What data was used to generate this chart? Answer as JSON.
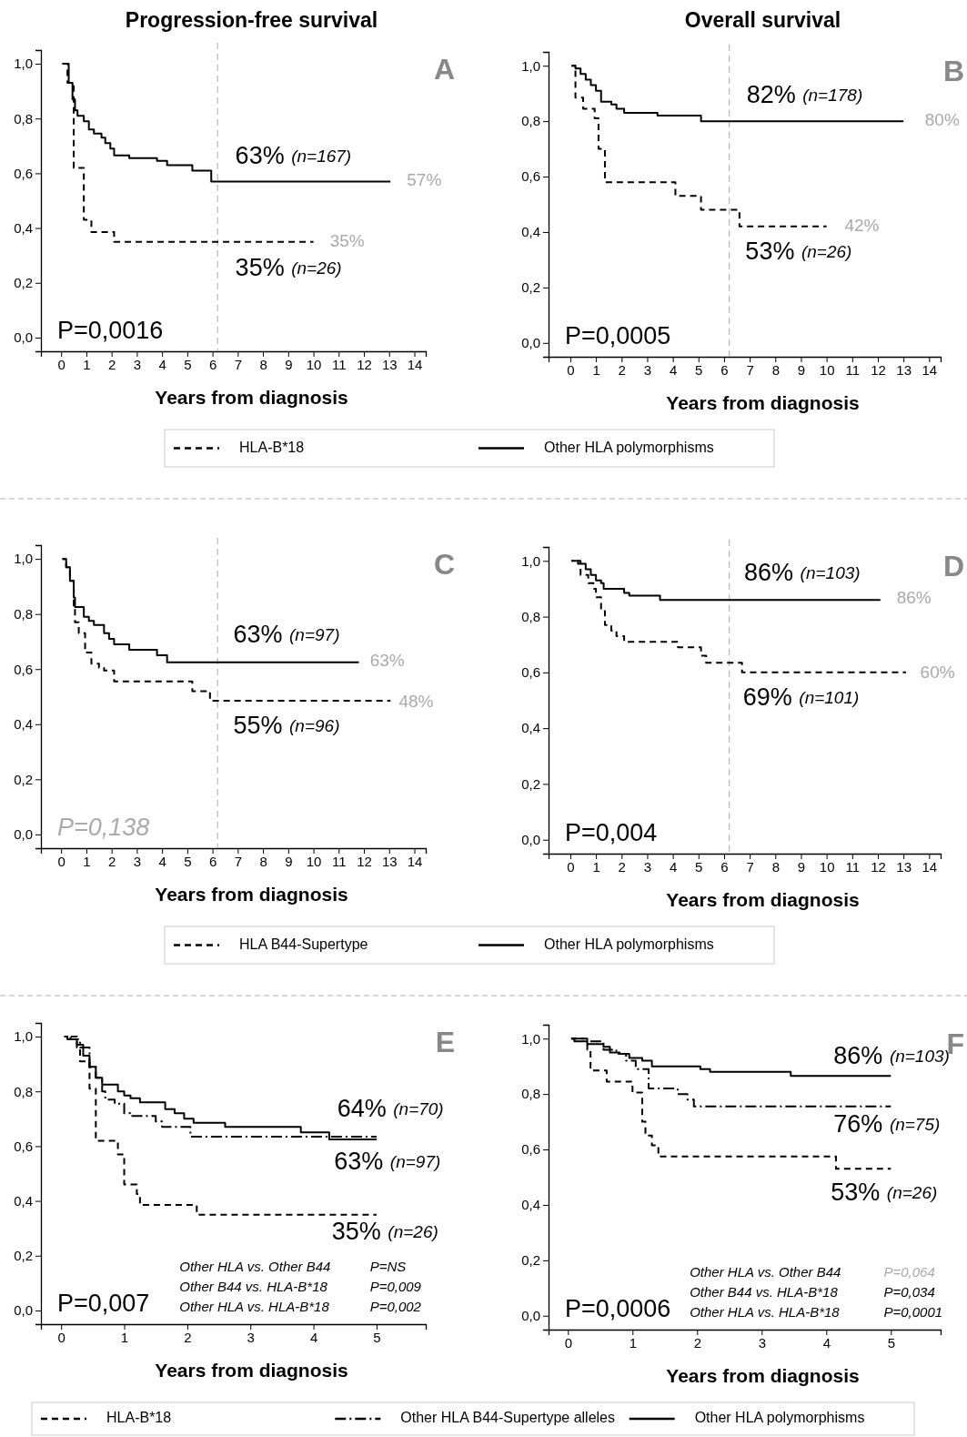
{
  "chart_data": [
    {
      "type": "step",
      "title": "Progression-free survival",
      "xlabel": "Years from diagnosis",
      "xlim": [
        -0.8,
        14.45
      ],
      "xticks": [
        0,
        1,
        2,
        3,
        4,
        5,
        6,
        7,
        8,
        9,
        10,
        11,
        12,
        13,
        14
      ],
      "ylim": [
        -0.05,
        1.05
      ],
      "yticks": [
        {
          "value": 0,
          "label": "0,0"
        },
        {
          "value": 0.2,
          "label": "0,2"
        },
        {
          "value": 0.4,
          "label": "0,4"
        },
        {
          "value": 0.6,
          "label": "0,6"
        },
        {
          "value": 0.8,
          "label": "0,8"
        },
        {
          "value": 1,
          "label": "1,0"
        }
      ],
      "legend": "bottom",
      "ref_lines": [
        {
          "axis": "x",
          "value": 6.2,
          "color": "#bbbbbb",
          "line_style": "dashed"
        }
      ],
      "series": [
        {
          "name": "HLA-B*18",
          "color": "#000000",
          "line_style": "dashed",
          "x": [
            0.05,
            0.25,
            0.5,
            0.9,
            1.2,
            2.1,
            10.0
          ],
          "values": [
            1.0,
            0.93,
            0.62,
            0.43,
            0.385,
            0.35,
            0.35
          ]
        },
        {
          "name": "Other HLA polymorphisms",
          "color": "#000000",
          "line_style": "solid",
          "x": [
            0.05,
            0.3,
            0.45,
            0.55,
            0.65,
            0.9,
            1.1,
            1.3,
            1.6,
            1.75,
            1.95,
            2.1,
            2.7,
            3.8,
            4.2,
            5.2,
            5.95,
            13.05
          ],
          "values": [
            1.0,
            0.93,
            0.87,
            0.83,
            0.81,
            0.79,
            0.76,
            0.745,
            0.73,
            0.71,
            0.69,
            0.665,
            0.655,
            0.645,
            0.63,
            0.61,
            0.57,
            0.57
          ]
        }
      ],
      "annotations": [
        "A",
        "P=0,0016",
        "63% (n=167)",
        "35% (n=26)",
        "57%",
        "35%"
      ]
    },
    {
      "type": "step",
      "title": "Overall survival",
      "xlabel": "Years from diagnosis",
      "xlim": [
        -0.85,
        14.45
      ],
      "xticks": [
        0,
        1,
        2,
        3,
        4,
        5,
        6,
        7,
        8,
        9,
        10,
        11,
        12,
        13,
        14
      ],
      "ylim": [
        -0.05,
        1.05
      ],
      "yticks": [
        {
          "value": 0,
          "label": "0,0"
        },
        {
          "value": 0.2,
          "label": "0,2"
        },
        {
          "value": 0.4,
          "label": "0,4"
        },
        {
          "value": 0.6,
          "label": "0,6"
        },
        {
          "value": 0.8,
          "label": "0,8"
        },
        {
          "value": 1,
          "label": "1,0"
        }
      ],
      "ref_lines": [
        {
          "axis": "x",
          "value": 6.2,
          "color": "#bbbbbb",
          "line_style": "dashed"
        }
      ],
      "series": [
        {
          "color": "#000000",
          "line_style": "dashed",
          "x": [
            0.05,
            0.2,
            0.5,
            0.95,
            1.1,
            1.35,
            4.1,
            5.1,
            6.6,
            10.0
          ],
          "values": [
            1.0,
            0.885,
            0.845,
            0.81,
            0.7,
            0.58,
            0.53,
            0.48,
            0.42,
            0.42
          ]
        },
        {
          "color": "#000000",
          "line_style": "solid",
          "x": [
            0.05,
            0.2,
            0.4,
            0.6,
            0.8,
            1.0,
            1.2,
            1.6,
            1.8,
            2.1,
            3.4,
            5.1,
            13.0
          ],
          "values": [
            1.0,
            0.99,
            0.97,
            0.95,
            0.93,
            0.91,
            0.87,
            0.86,
            0.845,
            0.83,
            0.82,
            0.8,
            0.8
          ]
        }
      ],
      "annotations": [
        "B",
        "P=0,0005",
        "82% (n=178)",
        "53% (n=26)",
        "80%",
        "42%"
      ]
    },
    {
      "type": "step",
      "xlabel": "Years from diagnosis",
      "xlim": [
        -0.8,
        14.45
      ],
      "xticks": [
        0,
        1,
        2,
        3,
        4,
        5,
        6,
        7,
        8,
        9,
        10,
        11,
        12,
        13,
        14
      ],
      "ylim": [
        -0.05,
        1.05
      ],
      "yticks": [
        {
          "value": 0,
          "label": "0,0"
        },
        {
          "value": 0.2,
          "label": "0,2"
        },
        {
          "value": 0.4,
          "label": "0,4"
        },
        {
          "value": 0.6,
          "label": "0,6"
        },
        {
          "value": 0.8,
          "label": "0,8"
        },
        {
          "value": 1,
          "label": "1,0"
        }
      ],
      "legend": "bottom",
      "ref_lines": [
        {
          "axis": "x",
          "value": 6.2,
          "color": "#bbbbbb",
          "line_style": "dashed"
        }
      ],
      "series": [
        {
          "name": "HLA B44-Supertype",
          "color": "#000000",
          "line_style": "dashed",
          "x": [
            0.05,
            0.2,
            0.35,
            0.5,
            0.55,
            0.7,
            0.95,
            1.2,
            1.5,
            1.7,
            2.1,
            5.2,
            5.9,
            13.05
          ],
          "values": [
            1.0,
            0.97,
            0.92,
            0.83,
            0.77,
            0.73,
            0.66,
            0.62,
            0.605,
            0.595,
            0.555,
            0.52,
            0.485,
            0.485
          ]
        },
        {
          "name": "Other HLA polymorphisms",
          "color": "#000000",
          "line_style": "solid",
          "x": [
            0.05,
            0.2,
            0.35,
            0.5,
            0.55,
            0.9,
            1.1,
            1.3,
            1.7,
            1.9,
            2.1,
            2.7,
            3.8,
            4.2,
            11.8
          ],
          "values": [
            1.0,
            0.97,
            0.92,
            0.86,
            0.825,
            0.79,
            0.775,
            0.76,
            0.73,
            0.71,
            0.69,
            0.67,
            0.65,
            0.625,
            0.625
          ]
        }
      ],
      "annotations": [
        "C",
        "P=0,138",
        "63% (n=97)",
        "55% (n=96)",
        "63%",
        "48%"
      ]
    },
    {
      "type": "step",
      "xlabel": "Years from diagnosis",
      "xlim": [
        -0.85,
        14.45
      ],
      "xticks": [
        0,
        1,
        2,
        3,
        4,
        5,
        6,
        7,
        8,
        9,
        10,
        11,
        12,
        13,
        14
      ],
      "ylim": [
        -0.05,
        1.05
      ],
      "yticks": [
        {
          "value": 0,
          "label": "0,0"
        },
        {
          "value": 0.2,
          "label": "0,2"
        },
        {
          "value": 0.4,
          "label": "0,4"
        },
        {
          "value": 0.6,
          "label": "0,6"
        },
        {
          "value": 0.8,
          "label": "0,8"
        },
        {
          "value": 1,
          "label": "1,0"
        }
      ],
      "ref_lines": [
        {
          "axis": "x",
          "value": 6.2,
          "color": "#bbbbbb",
          "line_style": "dashed"
        }
      ],
      "series": [
        {
          "color": "#000000",
          "line_style": "dashed",
          "x": [
            0.05,
            0.4,
            0.7,
            0.9,
            1.0,
            1.2,
            1.35,
            1.6,
            1.8,
            2.1,
            4.2,
            5.1,
            5.3,
            6.7,
            13.1
          ],
          "values": [
            1.0,
            0.95,
            0.92,
            0.9,
            0.87,
            0.82,
            0.77,
            0.75,
            0.73,
            0.71,
            0.69,
            0.66,
            0.635,
            0.6,
            0.6
          ]
        },
        {
          "color": "#000000",
          "line_style": "solid",
          "x": [
            0.05,
            0.3,
            0.6,
            0.8,
            1.0,
            1.2,
            1.3,
            2.1,
            2.3,
            3.5,
            12.1
          ],
          "values": [
            1.0,
            0.99,
            0.97,
            0.95,
            0.93,
            0.92,
            0.9,
            0.885,
            0.875,
            0.86,
            0.86
          ]
        }
      ],
      "annotations": [
        "D",
        "P=0,004",
        "86% (n=103)",
        "69% (n=101)",
        "86%",
        "60%"
      ]
    },
    {
      "type": "step",
      "xlabel": "Years from diagnosis",
      "xlim": [
        -0.32,
        5.78
      ],
      "xticks": [
        0,
        1,
        2,
        3,
        4,
        5
      ],
      "ylim": [
        -0.05,
        1.05
      ],
      "yticks": [
        {
          "value": 0,
          "label": "0,0"
        },
        {
          "value": 0.2,
          "label": "0,2"
        },
        {
          "value": 0.4,
          "label": "0,4"
        },
        {
          "value": 0.6,
          "label": "0,6"
        },
        {
          "value": 0.8,
          "label": "0,8"
        },
        {
          "value": 1,
          "label": "1,0"
        }
      ],
      "legend": "bottom",
      "series": [
        {
          "name": "HLA-B*18",
          "color": "#000000",
          "line_style": "dashed",
          "x": [
            0.05,
            0.25,
            0.3,
            0.45,
            0.55,
            0.9,
            1.0,
            1.2,
            1.25,
            2.15,
            5.0
          ],
          "values": [
            1.0,
            0.96,
            0.91,
            0.81,
            0.62,
            0.57,
            0.46,
            0.425,
            0.385,
            0.35,
            0.35
          ]
        },
        {
          "name": "Other HLA B44-Supertype alleles",
          "color": "#000000",
          "line_style": "dashdot",
          "x": [
            0.05,
            0.15,
            0.3,
            0.45,
            0.55,
            0.65,
            0.7,
            0.85,
            1.0,
            1.1,
            1.5,
            1.6,
            2.05,
            5.0
          ],
          "values": [
            1.0,
            0.99,
            0.96,
            0.89,
            0.85,
            0.8,
            0.77,
            0.755,
            0.72,
            0.71,
            0.69,
            0.67,
            0.635,
            0.635
          ]
        },
        {
          "name": "Other HLA polymorphisms",
          "color": "#000000",
          "line_style": "solid",
          "x": [
            0.05,
            0.1,
            0.25,
            0.35,
            0.45,
            0.55,
            0.65,
            0.9,
            1.0,
            1.1,
            1.25,
            1.65,
            1.8,
            1.95,
            2.1,
            2.6,
            3.8,
            4.25,
            5.0
          ],
          "values": [
            1.0,
            0.99,
            0.97,
            0.93,
            0.89,
            0.85,
            0.825,
            0.8,
            0.785,
            0.775,
            0.76,
            0.735,
            0.72,
            0.7,
            0.685,
            0.67,
            0.65,
            0.625,
            0.625
          ]
        }
      ],
      "annotations": [
        "E",
        "P=0,007",
        "64% (n=70)",
        "63% (n=97)",
        "35% (n=26)",
        "Other HLA vs. Other B44",
        "P=NS",
        "Other B44 vs. HLA-B*18",
        "P=0,009",
        "Other HLA vs. HLA-B*18",
        "P=0,002"
      ]
    },
    {
      "type": "step",
      "xlabel": "Years from diagnosis",
      "xlim": [
        -0.3,
        5.77
      ],
      "xticks": [
        0,
        1,
        2,
        3,
        4,
        5
      ],
      "ylim": [
        -0.05,
        1.05
      ],
      "yticks": [
        {
          "value": 0,
          "label": "0,0"
        },
        {
          "value": 0.2,
          "label": "0,2"
        },
        {
          "value": 0.4,
          "label": "0,4"
        },
        {
          "value": 0.6,
          "label": "0,6"
        },
        {
          "value": 0.8,
          "label": "0,8"
        },
        {
          "value": 1,
          "label": "1,0"
        }
      ],
      "series": [
        {
          "color": "#000000",
          "line_style": "dashed",
          "x": [
            0.05,
            0.3,
            0.35,
            0.6,
            1.0,
            1.15,
            1.2,
            1.3,
            1.4,
            4.15,
            5.0
          ],
          "values": [
            1.0,
            0.96,
            0.885,
            0.845,
            0.805,
            0.7,
            0.65,
            0.615,
            0.575,
            0.53,
            0.53
          ]
        },
        {
          "color": "#000000",
          "line_style": "dashdot",
          "x": [
            0.05,
            0.3,
            0.55,
            0.75,
            0.9,
            1.05,
            1.25,
            1.7,
            1.85,
            1.95,
            5.0
          ],
          "values": [
            1.0,
            0.99,
            0.96,
            0.945,
            0.92,
            0.89,
            0.82,
            0.8,
            0.78,
            0.755,
            0.755
          ]
        },
        {
          "color": "#000000",
          "line_style": "solid",
          "x": [
            0.05,
            0.1,
            0.3,
            0.55,
            0.65,
            0.8,
            0.95,
            1.15,
            1.3,
            2.05,
            2.2,
            3.45,
            5.0
          ],
          "values": [
            1.0,
            0.99,
            0.98,
            0.97,
            0.95,
            0.945,
            0.93,
            0.92,
            0.9,
            0.89,
            0.88,
            0.865,
            0.865
          ]
        }
      ],
      "annotations": [
        "F",
        "P=0,0006",
        "86% (n=103)",
        "76% (n=75)",
        "53% (n=26)",
        "Other HLA vs. Other B44",
        "P=0,064",
        "Other B44 vs. HLA-B*18",
        "P=0,034",
        "Other HLA vs. HLA-B*18",
        "P=0,0001"
      ]
    }
  ]
}
